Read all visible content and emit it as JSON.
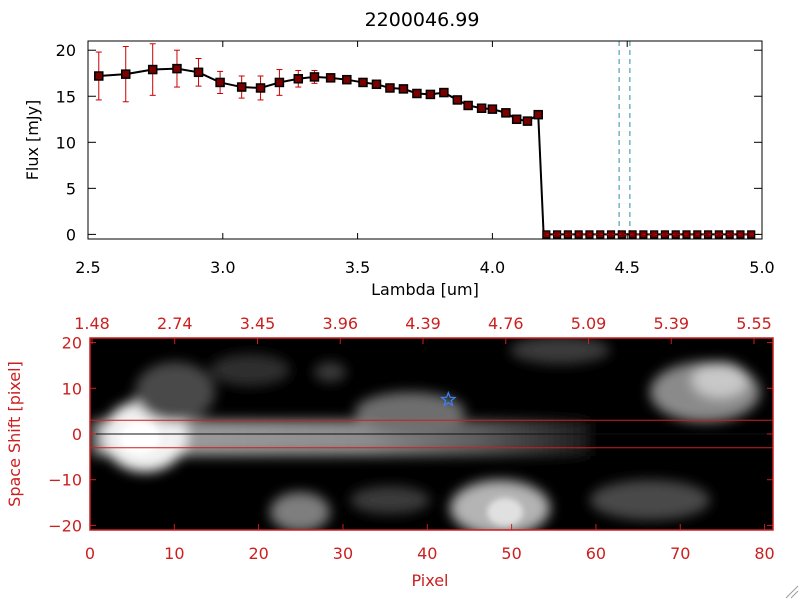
{
  "chart_data": [
    {
      "type": "line",
      "title": "2200046.99",
      "xlabel": "Lambda [um]",
      "ylabel": "Flux [mJy]",
      "xlim": [
        2.5,
        5.0
      ],
      "ylim": [
        -0.5,
        21
      ],
      "x_ticks": [
        2.5,
        3.0,
        3.5,
        4.0,
        4.5,
        5.0
      ],
      "x_tick_labels": [
        "2.5",
        "3.0",
        "3.5",
        "4.0",
        "4.5",
        "5.0"
      ],
      "y_ticks": [
        0,
        5,
        10,
        15,
        20
      ],
      "y_tick_labels": [
        "0",
        "5",
        "10",
        "15",
        "20"
      ],
      "series": [
        {
          "name": "flux",
          "x": [
            2.54,
            2.64,
            2.74,
            2.83,
            2.91,
            2.99,
            3.07,
            3.14,
            3.21,
            3.28,
            3.34,
            3.4,
            3.46,
            3.52,
            3.57,
            3.62,
            3.67,
            3.72,
            3.77,
            3.82,
            3.87,
            3.91,
            3.96,
            4.0,
            4.05,
            4.09,
            4.13,
            4.17
          ],
          "values": [
            17.2,
            17.4,
            17.9,
            18.0,
            17.6,
            16.5,
            16.0,
            15.9,
            16.5,
            16.9,
            17.1,
            17.0,
            16.8,
            16.5,
            16.3,
            15.9,
            15.8,
            15.3,
            15.2,
            15.4,
            14.6,
            14.0,
            13.7,
            13.6,
            13.2,
            12.5,
            12.3,
            13.0
          ],
          "errors": [
            2.6,
            3.0,
            2.8,
            2.0,
            1.5,
            1.2,
            1.2,
            1.3,
            1.4,
            0.9,
            0.7,
            0.4,
            0.4,
            0.3,
            0.3,
            0.3,
            0.3,
            0.3,
            0.3,
            0.3,
            0.3,
            0.3,
            0.3,
            0.3,
            0.3,
            0.3,
            0.3,
            0.3
          ]
        },
        {
          "name": "flux-zero",
          "x": [
            4.2,
            4.24,
            4.28,
            4.32,
            4.36,
            4.4,
            4.44,
            4.48,
            4.52,
            4.56,
            4.6,
            4.64,
            4.68,
            4.72,
            4.76,
            4.8,
            4.84,
            4.88,
            4.92,
            4.96
          ],
          "values": [
            0,
            0,
            0,
            0,
            0,
            0,
            0,
            0,
            0,
            0,
            0,
            0,
            0,
            0,
            0,
            0,
            0,
            0,
            0,
            0
          ]
        }
      ],
      "drop_x": 4.19,
      "vlines": [
        4.47,
        4.51
      ],
      "colors": {
        "line": "#000000",
        "marker": "#7a0000",
        "errorbar": "#cc0000",
        "vline": "#2e8fa0"
      }
    },
    {
      "type": "heatmap",
      "xlabel": "Pixel",
      "ylabel": "Space Shift [pixel]",
      "xlim": [
        0,
        81
      ],
      "ylim": [
        -21,
        21
      ],
      "x_ticks": [
        0,
        10,
        20,
        30,
        40,
        50,
        60,
        70,
        80
      ],
      "x_tick_labels": [
        "0",
        "10",
        "20",
        "30",
        "40",
        "50",
        "60",
        "70",
        "80"
      ],
      "y_ticks": [
        -20,
        -10,
        0,
        10,
        20
      ],
      "y_tick_labels": [
        "−20",
        "−10",
        "0",
        "10",
        "20"
      ],
      "top_axis_labels": [
        "1.48",
        "2.74",
        "3.45",
        "3.96",
        "4.39",
        "4.76",
        "5.09",
        "5.39",
        "5.55"
      ],
      "star": {
        "x": 42.5,
        "y": 7.5
      },
      "hlines": [
        3,
        -3
      ],
      "centerline": 0,
      "colors": {
        "axis": "#cc1f1f",
        "star": "#3a7ff0"
      }
    }
  ]
}
